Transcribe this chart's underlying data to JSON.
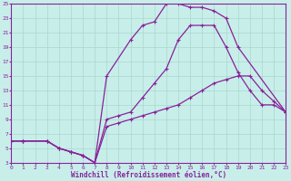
{
  "xlabel": "Windchill (Refroidissement éolien,°C)",
  "bg_color": "#c8eeea",
  "grid_color": "#a8d8cc",
  "line_color": "#882299",
  "xlim": [
    0,
    23
  ],
  "ylim": [
    3,
    25
  ],
  "xticks": [
    0,
    1,
    2,
    3,
    4,
    5,
    6,
    7,
    8,
    9,
    10,
    11,
    12,
    13,
    14,
    15,
    16,
    17,
    18,
    19,
    20,
    21,
    22,
    23
  ],
  "yticks": [
    3,
    5,
    7,
    9,
    11,
    13,
    15,
    17,
    19,
    21,
    23,
    25
  ],
  "curve_upper_x": [
    0,
    1,
    3,
    4,
    5,
    6,
    7,
    8,
    10,
    11,
    12,
    13,
    14,
    15,
    16,
    17,
    18,
    19,
    23
  ],
  "curve_upper_y": [
    6,
    6,
    6,
    5,
    4.5,
    4,
    3,
    15,
    20,
    22,
    22.5,
    25,
    25,
    24.5,
    24.5,
    24,
    23,
    19,
    10
  ],
  "curve_mid_x": [
    0,
    1,
    3,
    4,
    5,
    6,
    7,
    8,
    9,
    10,
    11,
    12,
    13,
    14,
    15,
    16,
    17,
    18,
    19,
    20,
    21,
    22,
    23
  ],
  "curve_mid_y": [
    6,
    6,
    6,
    5,
    4.5,
    4,
    3,
    9,
    9.5,
    10,
    12,
    14,
    16,
    20,
    22,
    22,
    22,
    19,
    15.5,
    13,
    11,
    11,
    10
  ],
  "curve_low_x": [
    0,
    1,
    3,
    4,
    5,
    6,
    7,
    8,
    9,
    10,
    11,
    12,
    13,
    14,
    15,
    16,
    17,
    18,
    19,
    20,
    21,
    22,
    23
  ],
  "curve_low_y": [
    6,
    6,
    6,
    5,
    4.5,
    4,
    3,
    8,
    8.5,
    9,
    9.5,
    10,
    10.5,
    11,
    12,
    13,
    14,
    14.5,
    15,
    15,
    13,
    11.5,
    10
  ]
}
